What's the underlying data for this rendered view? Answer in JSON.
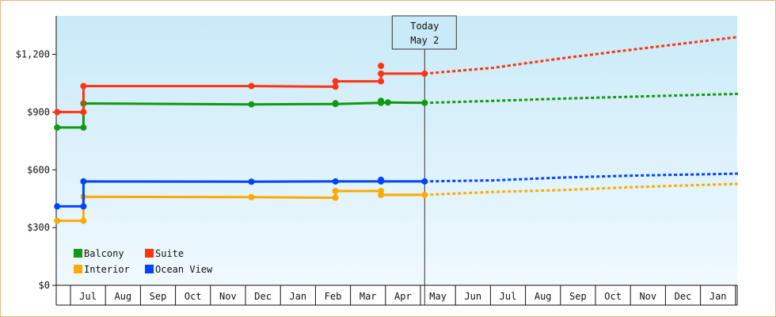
{
  "chart_data": {
    "type": "line",
    "ylim": [
      0,
      1400
    ],
    "y_ticks": [
      {
        "value": 0,
        "label": "$0"
      },
      {
        "value": 300,
        "label": "$300"
      },
      {
        "value": 600,
        "label": "$600"
      },
      {
        "value": 900,
        "label": "$900"
      },
      {
        "value": 1200,
        "label": "$1,200"
      }
    ],
    "month_ticks": [
      "Jul",
      "Aug",
      "Sep",
      "Oct",
      "Nov",
      "Dec",
      "Jan",
      "Feb",
      "Mar",
      "Apr",
      "May",
      "Jun",
      "Jul",
      "Aug",
      "Sep",
      "Oct",
      "Nov",
      "Dec",
      "Jan"
    ],
    "xlim": [
      -0.45,
      19.0
    ],
    "today": {
      "x": 10.05,
      "line1": "Today",
      "line2": "May 2"
    },
    "grid": "none",
    "legend_position": "bottom-left",
    "series": [
      {
        "name": "Balcony",
        "color": "#119911",
        "actual": [
          [
            -0.45,
            820
          ],
          [
            0.3,
            820
          ],
          [
            0.3,
            945
          ],
          [
            5.1,
            940
          ],
          [
            7.5,
            942
          ],
          [
            8.8,
            948
          ],
          [
            9.0,
            950
          ],
          [
            10.05,
            948
          ]
        ],
        "markers": [
          [
            -0.45,
            820
          ],
          [
            0.3,
            820
          ],
          [
            0.3,
            945
          ],
          [
            5.1,
            940
          ],
          [
            7.5,
            942
          ],
          [
            7.5,
            946
          ],
          [
            8.8,
            948
          ],
          [
            8.8,
            958
          ],
          [
            9.0,
            950
          ],
          [
            10.05,
            948
          ]
        ],
        "forecast": [
          [
            10.05,
            948
          ],
          [
            12,
            958
          ],
          [
            14,
            970
          ],
          [
            16,
            980
          ],
          [
            19,
            995
          ]
        ]
      },
      {
        "name": "Suite",
        "color": "#ff3311",
        "actual": [
          [
            -0.45,
            900
          ],
          [
            0.3,
            900
          ],
          [
            0.3,
            1035
          ],
          [
            5.1,
            1035
          ],
          [
            7.5,
            1032
          ],
          [
            7.5,
            1060
          ],
          [
            8.8,
            1060
          ],
          [
            8.8,
            1100
          ],
          [
            10.05,
            1100
          ]
        ],
        "markers": [
          [
            -0.45,
            900
          ],
          [
            0.3,
            900
          ],
          [
            0.3,
            1035
          ],
          [
            5.1,
            1035
          ],
          [
            7.5,
            1032
          ],
          [
            7.5,
            1060
          ],
          [
            8.8,
            1060
          ],
          [
            8.8,
            1100
          ],
          [
            8.8,
            1140
          ],
          [
            10.05,
            1100
          ]
        ],
        "forecast": [
          [
            10.05,
            1100
          ],
          [
            12,
            1130
          ],
          [
            14,
            1180
          ],
          [
            16,
            1225
          ],
          [
            19,
            1290
          ]
        ]
      },
      {
        "name": "Interior",
        "color": "#ffaa00",
        "actual": [
          [
            -0.45,
            335
          ],
          [
            0.3,
            335
          ],
          [
            0.3,
            460
          ],
          [
            5.1,
            458
          ],
          [
            7.5,
            455
          ],
          [
            7.5,
            490
          ],
          [
            8.8,
            490
          ],
          [
            8.8,
            470
          ],
          [
            10.05,
            470
          ]
        ],
        "markers": [
          [
            -0.45,
            335
          ],
          [
            0.3,
            335
          ],
          [
            0.3,
            460
          ],
          [
            5.1,
            458
          ],
          [
            7.5,
            455
          ],
          [
            7.5,
            490
          ],
          [
            8.8,
            490
          ],
          [
            8.8,
            470
          ],
          [
            10.05,
            470
          ]
        ],
        "forecast": [
          [
            10.05,
            470
          ],
          [
            12,
            485
          ],
          [
            14,
            495
          ],
          [
            16,
            510
          ],
          [
            19,
            527
          ]
        ]
      },
      {
        "name": "Ocean View",
        "color": "#0044ff",
        "actual": [
          [
            -0.45,
            410
          ],
          [
            0.3,
            410
          ],
          [
            0.3,
            540
          ],
          [
            5.1,
            538
          ],
          [
            7.5,
            540
          ],
          [
            8.8,
            540
          ],
          [
            10.05,
            540
          ]
        ],
        "markers": [
          [
            -0.45,
            410
          ],
          [
            0.3,
            410
          ],
          [
            0.3,
            540
          ],
          [
            5.1,
            538
          ],
          [
            7.5,
            540
          ],
          [
            8.8,
            540
          ],
          [
            8.8,
            548
          ],
          [
            10.05,
            540
          ]
        ],
        "forecast": [
          [
            10.05,
            540
          ],
          [
            12,
            545
          ],
          [
            14,
            560
          ],
          [
            16,
            570
          ],
          [
            19,
            580
          ]
        ]
      }
    ]
  }
}
